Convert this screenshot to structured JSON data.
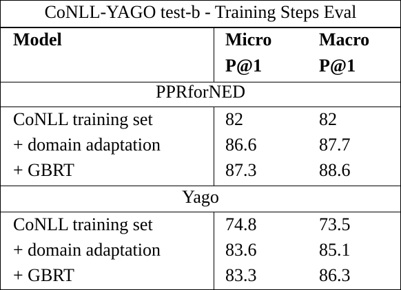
{
  "title": "CoNLL-YAGO test-b - Training Steps Eval",
  "header": {
    "model": "Model",
    "micro_line1": "Micro",
    "micro_line2": "P@1",
    "macro_line1": "Macro",
    "macro_line2": "P@1"
  },
  "sections": [
    {
      "name": "PPRforNED",
      "rows": [
        {
          "model": "CoNLL training set",
          "micro": "82",
          "macro": "82"
        },
        {
          "model": "+ domain adaptation",
          "micro": "86.6",
          "macro": "87.7"
        },
        {
          "model": "+ GBRT",
          "micro": "87.3",
          "macro": "88.6"
        }
      ]
    },
    {
      "name": "Yago",
      "rows": [
        {
          "model": "CoNLL training set",
          "micro": "74.8",
          "macro": "73.5"
        },
        {
          "model": "+ domain adaptation",
          "micro": "83.6",
          "macro": "85.1"
        },
        {
          "model": "+ GBRT",
          "micro": "83.3",
          "macro": "86.3"
        }
      ]
    }
  ]
}
